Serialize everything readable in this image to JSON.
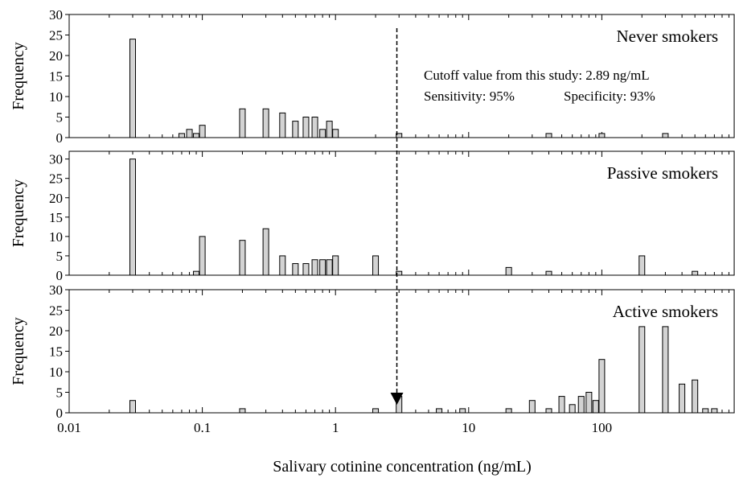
{
  "chart_data": {
    "type": "bar",
    "xscale": "log",
    "xlim": [
      0.01,
      1000
    ],
    "xlabel": "Salivary cotinine concentration (ng/mL)",
    "xticks": [
      {
        "value": 0.01,
        "label": "0.01"
      },
      {
        "value": 0.1,
        "label": "0.1"
      },
      {
        "value": 1,
        "label": "1"
      },
      {
        "value": 10,
        "label": "10"
      },
      {
        "value": 100,
        "label": "100"
      }
    ],
    "yticks": [
      "0",
      "5",
      "10",
      "15",
      "20",
      "25",
      "30"
    ],
    "grid": false,
    "cutoff": {
      "value": 2.89,
      "text": "Cutoff value from this study: 2.89 ng/mL",
      "sensitivity": "Sensitivity: 95%",
      "specificity": "Specificity: 93%"
    },
    "panels": [
      {
        "name": "Never smokers",
        "ylabel": "Frequency",
        "ylim": [
          0,
          30
        ],
        "bars": [
          {
            "x": 0.03,
            "y": 24
          },
          {
            "x": 0.07,
            "y": 1
          },
          {
            "x": 0.08,
            "y": 2
          },
          {
            "x": 0.09,
            "y": 1
          },
          {
            "x": 0.1,
            "y": 3
          },
          {
            "x": 0.2,
            "y": 7
          },
          {
            "x": 0.3,
            "y": 7
          },
          {
            "x": 0.4,
            "y": 6
          },
          {
            "x": 0.5,
            "y": 4
          },
          {
            "x": 0.6,
            "y": 5
          },
          {
            "x": 0.7,
            "y": 5
          },
          {
            "x": 0.8,
            "y": 2
          },
          {
            "x": 0.9,
            "y": 4
          },
          {
            "x": 1,
            "y": 2
          },
          {
            "x": 3,
            "y": 1
          },
          {
            "x": 40,
            "y": 1
          },
          {
            "x": 100,
            "y": 1
          },
          {
            "x": 300,
            "y": 1
          }
        ]
      },
      {
        "name": "Passive smokers",
        "ylabel": "Frequency",
        "ylim": [
          0,
          32
        ],
        "bars": [
          {
            "x": 0.03,
            "y": 30
          },
          {
            "x": 0.09,
            "y": 1
          },
          {
            "x": 0.1,
            "y": 10
          },
          {
            "x": 0.2,
            "y": 9
          },
          {
            "x": 0.3,
            "y": 12
          },
          {
            "x": 0.4,
            "y": 5
          },
          {
            "x": 0.5,
            "y": 3
          },
          {
            "x": 0.6,
            "y": 3
          },
          {
            "x": 0.7,
            "y": 4
          },
          {
            "x": 0.8,
            "y": 4
          },
          {
            "x": 0.9,
            "y": 4
          },
          {
            "x": 1,
            "y": 5
          },
          {
            "x": 2,
            "y": 5
          },
          {
            "x": 3,
            "y": 1
          },
          {
            "x": 20,
            "y": 2
          },
          {
            "x": 40,
            "y": 1
          },
          {
            "x": 200,
            "y": 5
          },
          {
            "x": 500,
            "y": 1
          }
        ]
      },
      {
        "name": "Active smokers",
        "ylabel": "Frequency",
        "ylim": [
          0,
          30
        ],
        "bars": [
          {
            "x": 0.03,
            "y": 3
          },
          {
            "x": 0.2,
            "y": 1
          },
          {
            "x": 2,
            "y": 1
          },
          {
            "x": 3,
            "y": 4
          },
          {
            "x": 6,
            "y": 1
          },
          {
            "x": 9,
            "y": 1
          },
          {
            "x": 20,
            "y": 1
          },
          {
            "x": 30,
            "y": 3
          },
          {
            "x": 40,
            "y": 1
          },
          {
            "x": 50,
            "y": 4
          },
          {
            "x": 60,
            "y": 2
          },
          {
            "x": 70,
            "y": 4
          },
          {
            "x": 80,
            "y": 5
          },
          {
            "x": 90,
            "y": 3
          },
          {
            "x": 100,
            "y": 13
          },
          {
            "x": 200,
            "y": 21
          },
          {
            "x": 300,
            "y": 21
          },
          {
            "x": 400,
            "y": 7
          },
          {
            "x": 500,
            "y": 8
          },
          {
            "x": 600,
            "y": 1
          },
          {
            "x": 700,
            "y": 1
          }
        ]
      }
    ]
  }
}
